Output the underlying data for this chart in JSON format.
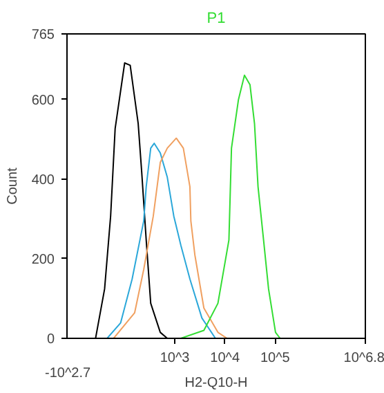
{
  "chart_data": {
    "type": "line",
    "title": "P1",
    "xlabel": "H2-Q10-H",
    "ylabel": "Count",
    "log": "x",
    "xlim": [
      7.08,
      6309573
    ],
    "xticks": [
      {
        "value": 1000,
        "label": "10^3"
      },
      {
        "value": 10000,
        "label": "10^4"
      },
      {
        "value": 100000,
        "label": "10^5"
      },
      {
        "value": 6309573,
        "label": "10^6.8"
      }
    ],
    "annotations": [
      "-10^2.7"
    ],
    "ylim": [
      0,
      765
    ],
    "yticks": [
      0,
      200,
      400,
      600,
      765
    ],
    "grid": false,
    "marker": "none",
    "line_style": "solid",
    "series": [
      {
        "color": "#000000",
        "x": [
          26.3,
          39.8,
          52.5,
          64.6,
          100,
          129,
          186,
          219,
          269,
          331,
          513,
          708
        ],
        "values": [
          0,
          124,
          307,
          527,
          692,
          686,
          540,
          417,
          247,
          88,
          15,
          0
        ]
      },
      {
        "color": "#2aa7d9",
        "x": [
          44.7,
          83.2,
          141,
          240,
          269,
          331,
          389,
          513,
          708,
          955,
          1320,
          2000,
          3470,
          6460
        ],
        "values": [
          0,
          39,
          149,
          295,
          381,
          478,
          490,
          466,
          405,
          307,
          234,
          149,
          51,
          0
        ]
      },
      {
        "color": "#f0a060",
        "x": [
          60.3,
          158,
          240,
          372,
          513,
          708,
          1070,
          1480,
          2000,
          2090,
          2510,
          3800,
          7240,
          11000
        ],
        "values": [
          0,
          64,
          173,
          307,
          442,
          478,
          503,
          478,
          381,
          295,
          210,
          76,
          15,
          0
        ]
      },
      {
        "color": "#33dd33",
        "x": [
          1320,
          3800,
          7240,
          12000,
          13500,
          18600,
          24500,
          31600,
          38900,
          45700,
          58900,
          74100,
          102000,
          126000
        ],
        "values": [
          0,
          20,
          88,
          247,
          478,
          600,
          661,
          637,
          539,
          381,
          247,
          124,
          15,
          0
        ]
      }
    ]
  }
}
